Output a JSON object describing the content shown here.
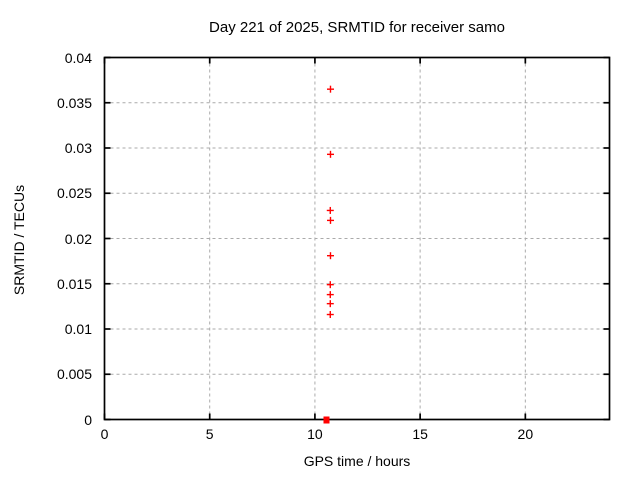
{
  "chart_data": {
    "type": "scatter",
    "title": "Day 221 of 2025, SRMTID for receiver samo",
    "xlabel": "GPS time / hours",
    "ylabel": "SRMTID / TECUs",
    "xlim": [
      0,
      24
    ],
    "ylim": [
      0,
      0.04
    ],
    "xticks": [
      {
        "value": 0,
        "label": "0"
      },
      {
        "value": 5,
        "label": "5"
      },
      {
        "value": 10,
        "label": "10"
      },
      {
        "value": 15,
        "label": "15"
      },
      {
        "value": 20,
        "label": "20"
      }
    ],
    "yticks": [
      {
        "value": 0,
        "label": "0"
      },
      {
        "value": 0.005,
        "label": "0.005"
      },
      {
        "value": 0.01,
        "label": "0.01"
      },
      {
        "value": 0.015,
        "label": "0.015"
      },
      {
        "value": 0.02,
        "label": "0.02"
      },
      {
        "value": 0.025,
        "label": "0.025"
      },
      {
        "value": 0.03,
        "label": "0.03"
      },
      {
        "value": 0.035,
        "label": "0.035"
      },
      {
        "value": 0.04,
        "label": "0.04"
      }
    ],
    "grid": true,
    "legend": false,
    "marker": "plus",
    "colors": {
      "marker": "#ff0000",
      "grid": "#aaaaaa",
      "border": "#000000",
      "background": "#ffffff",
      "text": "#000000"
    },
    "points": [
      {
        "x": 10.74,
        "y": 0.0365
      },
      {
        "x": 10.74,
        "y": 0.0293
      },
      {
        "x": 10.73,
        "y": 0.0231
      },
      {
        "x": 10.74,
        "y": 0.022
      },
      {
        "x": 10.74,
        "y": 0.0181
      },
      {
        "x": 10.73,
        "y": 0.0149
      },
      {
        "x": 10.73,
        "y": 0.0138
      },
      {
        "x": 10.73,
        "y": 0.0128
      },
      {
        "x": 10.73,
        "y": 0.0116
      }
    ],
    "zero_cluster": {
      "x": 10.55,
      "y": 0.0,
      "marker": "filled-square"
    }
  }
}
